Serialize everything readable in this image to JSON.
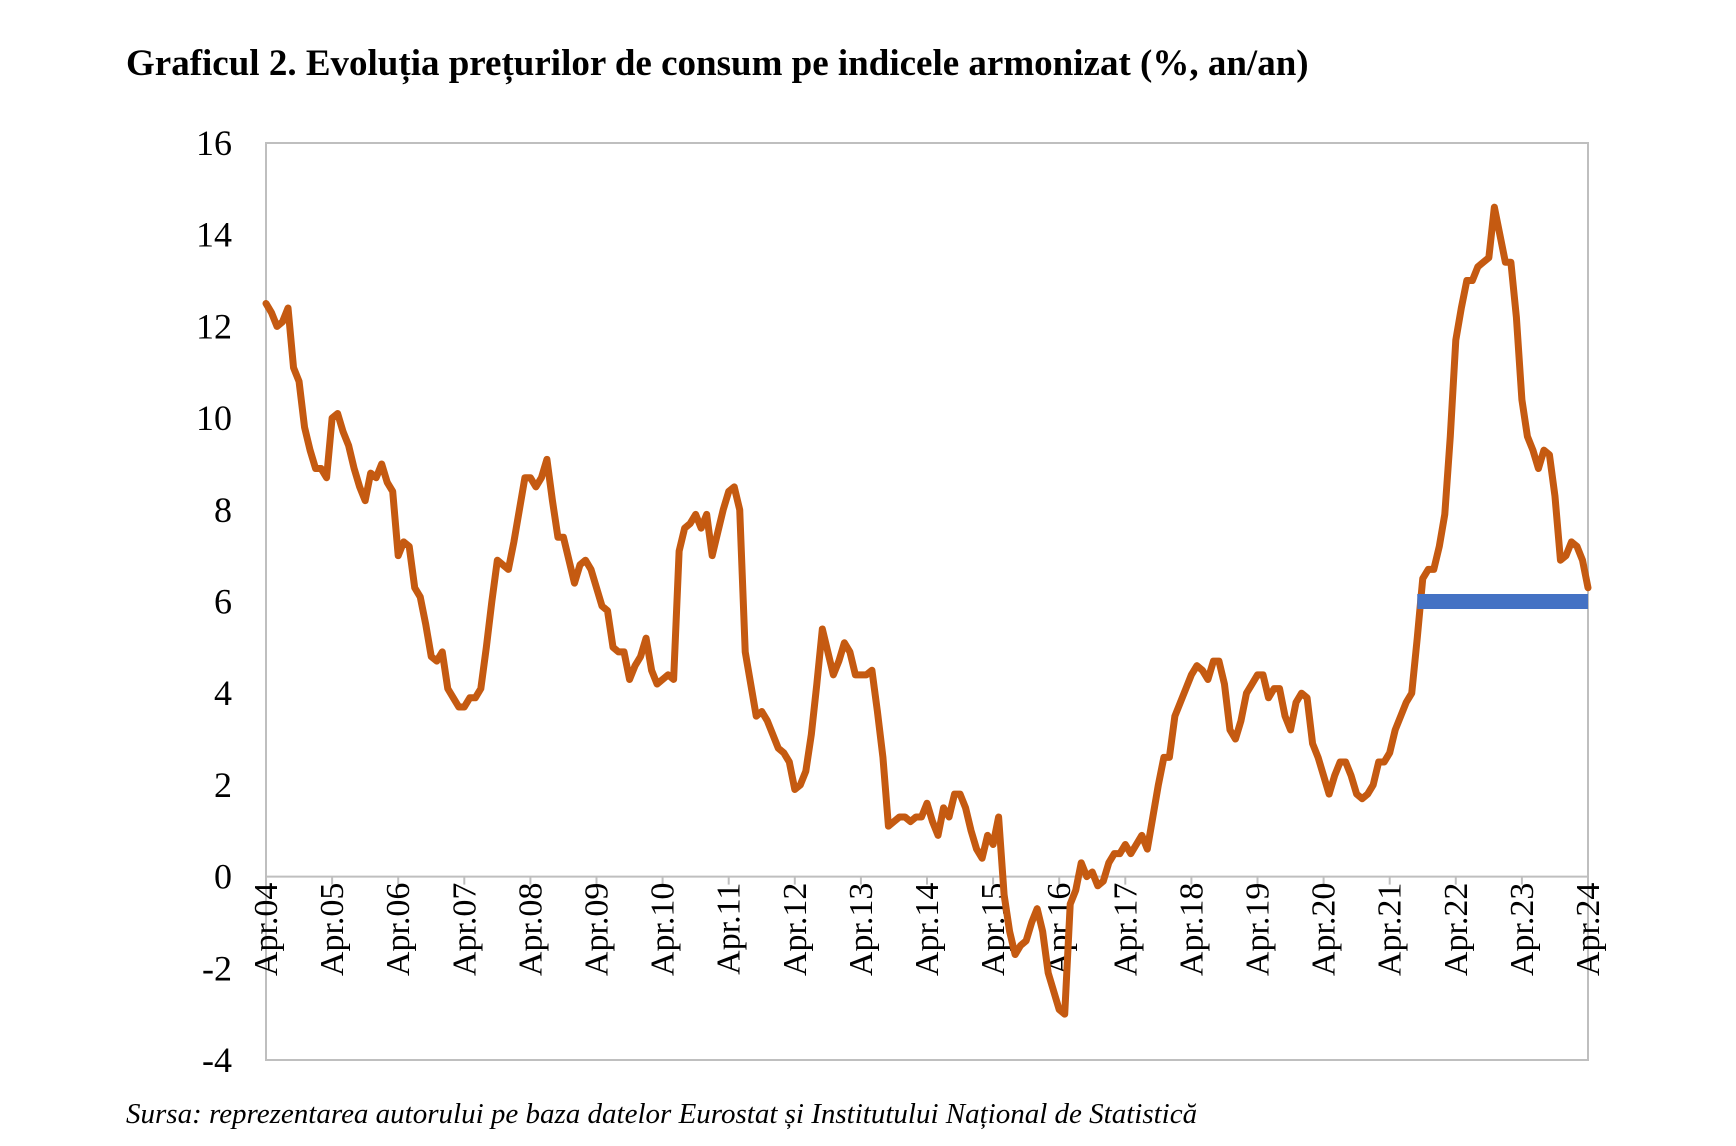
{
  "title": "Graficul 2. Evoluția prețurilor de consum pe indicele armonizat (%, an/an)",
  "source": "Sursa: reprezentarea autorului pe baza datelor Eurostat și Institutului Național de Statistică",
  "chart_data": {
    "type": "line",
    "title": "Graficul 2. Evoluția prețurilor de consum pe indicele armonizat (%, an/an)",
    "xlabel": "",
    "ylabel": "",
    "ylim": [
      -4,
      16
    ],
    "yticks": [
      "16",
      "14",
      "12",
      "10",
      "8",
      "6",
      "4",
      "2",
      "0",
      "-2",
      "-4"
    ],
    "ytick_values": [
      16,
      14,
      12,
      10,
      8,
      6,
      4,
      2,
      0,
      -2,
      -4
    ],
    "xticks": [
      "Apr.04",
      "Apr.05",
      "Apr.06",
      "Apr.07",
      "Apr.08",
      "Apr.09",
      "Apr.10",
      "Apr.11",
      "Apr.12",
      "Apr.13",
      "Apr.14",
      "Apr.15",
      "Apr.16",
      "Apr.17",
      "Apr.18",
      "Apr.19",
      "Apr.20",
      "Apr.21",
      "Apr.22",
      "Apr.23",
      "Apr.24"
    ],
    "grid": false,
    "legend": "none",
    "series": [
      {
        "color": "#C55A11",
        "x_start": "Apr.04",
        "x_end": "Apr.24",
        "values": [
          12.5,
          12.3,
          12.0,
          12.1,
          12.4,
          11.1,
          10.8,
          9.8,
          9.3,
          8.9,
          8.9,
          8.7,
          10.0,
          10.1,
          9.7,
          9.4,
          8.9,
          8.5,
          8.2,
          8.8,
          8.7,
          9.0,
          8.6,
          8.4,
          7.0,
          7.3,
          7.2,
          6.3,
          6.1,
          5.5,
          4.8,
          4.7,
          4.9,
          4.1,
          3.9,
          3.7,
          3.7,
          3.9,
          3.9,
          4.1,
          5.0,
          6.0,
          6.9,
          6.8,
          6.7,
          7.3,
          8.0,
          8.7,
          8.7,
          8.5,
          8.7,
          9.1,
          8.2,
          7.4,
          7.4,
          6.9,
          6.4,
          6.8,
          6.9,
          6.7,
          6.3,
          5.9,
          5.8,
          5.0,
          4.9,
          4.9,
          4.3,
          4.6,
          4.8,
          5.2,
          4.5,
          4.2,
          4.3,
          4.4,
          4.3,
          7.1,
          7.6,
          7.7,
          7.9,
          7.6,
          7.9,
          7.0,
          7.5,
          8.0,
          8.4,
          8.5,
          8.0,
          4.9,
          4.2,
          3.5,
          3.6,
          3.4,
          3.1,
          2.8,
          2.7,
          2.5,
          1.9,
          2.0,
          2.3,
          3.1,
          4.2,
          5.4,
          4.9,
          4.4,
          4.7,
          5.1,
          4.9,
          4.4,
          4.4,
          4.4,
          4.5,
          3.6,
          2.6,
          1.1,
          1.2,
          1.3,
          1.3,
          1.2,
          1.3,
          1.3,
          1.6,
          1.2,
          0.9,
          1.5,
          1.3,
          1.8,
          1.8,
          1.5,
          1.0,
          0.6,
          0.4,
          0.9,
          0.7,
          1.3,
          -0.4,
          -1.2,
          -1.7,
          -1.5,
          -1.4,
          -1.0,
          -0.7,
          -1.2,
          -2.1,
          -2.5,
          -2.9,
          -3.0,
          -0.6,
          -0.3,
          0.3,
          0.0,
          0.1,
          -0.2,
          -0.1,
          0.3,
          0.5,
          0.5,
          0.7,
          0.5,
          0.7,
          0.9,
          0.6,
          1.3,
          2.0,
          2.6,
          2.6,
          3.5,
          3.8,
          4.1,
          4.4,
          4.6,
          4.5,
          4.3,
          4.7,
          4.7,
          4.2,
          3.2,
          3.0,
          3.4,
          4.0,
          4.2,
          4.4,
          4.4,
          3.9,
          4.1,
          4.1,
          3.5,
          3.2,
          3.8,
          4.0,
          3.9,
          2.9,
          2.6,
          2.2,
          1.8,
          2.2,
          2.5,
          2.5,
          2.2,
          1.8,
          1.7,
          1.8,
          2.0,
          2.5,
          2.5,
          2.7,
          3.2,
          3.5,
          3.8,
          4.0,
          5.2,
          6.5,
          6.7,
          6.7,
          7.2,
          7.9,
          9.6,
          11.7,
          12.4,
          13.0,
          13.0,
          13.3,
          13.4,
          13.5,
          14.6,
          14.0,
          13.4,
          13.4,
          12.2,
          10.4,
          9.6,
          9.3,
          8.9,
          9.3,
          9.2,
          8.3,
          6.9,
          7.0,
          7.3,
          7.2,
          6.9,
          6.3
        ]
      },
      {
        "color": "#4472C4",
        "x_start_index": 209,
        "x_end_index": 240,
        "value": 6.0
      }
    ]
  }
}
